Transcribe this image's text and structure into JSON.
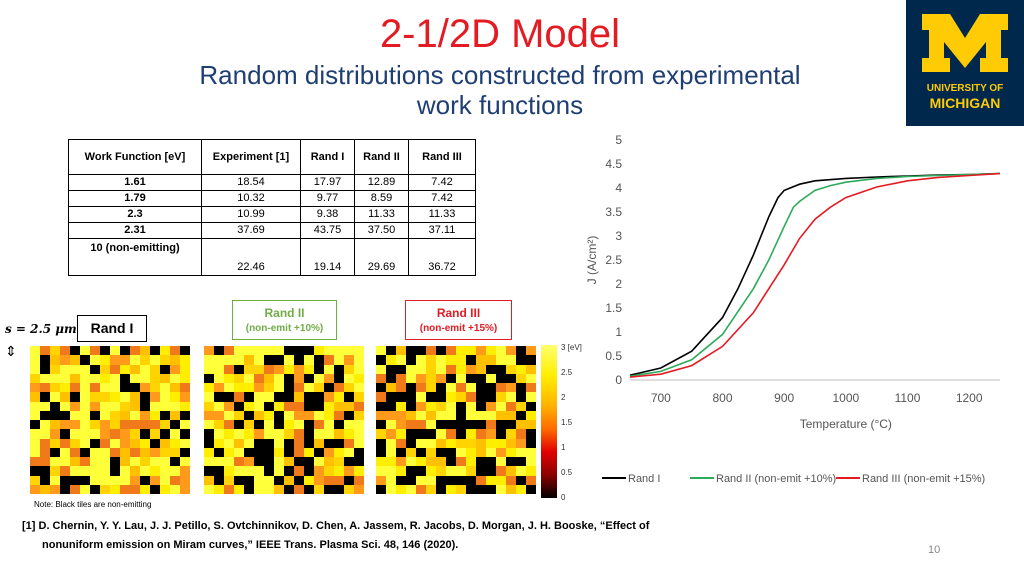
{
  "slide": {
    "title": "2-1/2D Model",
    "subtitle_line1": "Random distributions constructed from experimental",
    "subtitle_line2": "work functions",
    "logo_line1": "UNIVERSITY OF",
    "logo_line2": "MICHIGAN",
    "logo_letter": "M",
    "colors": {
      "title": "#e31b23",
      "subtitle": "#1f3f74",
      "logo_bg": "#00274c",
      "logo_fg": "#ffcb05"
    }
  },
  "table": {
    "headers": [
      "Work Function [eV]",
      "Experiment [1]",
      "Rand I",
      "Rand II",
      "Rand III"
    ],
    "rows": [
      [
        "1.61",
        "18.54",
        "17.97",
        "12.89",
        "7.42"
      ],
      [
        "1.79",
        "10.32",
        "9.77",
        "8.59",
        "7.42"
      ],
      [
        "2.3",
        "10.99",
        "9.38",
        "11.33",
        "11.33"
      ],
      [
        "2.31",
        "37.69",
        "43.75",
        "37.50",
        "37.11"
      ],
      [
        "10 (non-emitting)",
        "22.46",
        "19.14",
        "29.69",
        "36.72"
      ]
    ]
  },
  "maps": {
    "scale_label": "s = 2.5 μm",
    "rand1_label": "Rand I",
    "rand2_label": "Rand II",
    "rand2_sub": "(non-emit +10%)",
    "rand3_label": "Rand III",
    "rand3_sub": "(non-emit +15%)",
    "colorbar_ticks": [
      "3 [eV]",
      "2.5",
      "2",
      "1.5",
      "1",
      "0.5",
      "0"
    ],
    "note": "Note: Black tiles are non-emitting"
  },
  "reference": {
    "line1": "[1] D. Chernin, Y. Y. Lau, J. J. Petillo, S. Ovtchinnikov, D. Chen, A. Jassem, R. Jacobs, D. Morgan, J. H. Booske, “Effect of",
    "line2": "nonuniform emission on Miram curves,” IEEE Trans. Plasma Sci. 48, 146 (2020)."
  },
  "page_number": "10",
  "chart_data": {
    "type": "line",
    "title": "",
    "xlabel": "Temperature (°C)",
    "ylabel": "J (A/cm²)",
    "xlim": [
      650,
      1250
    ],
    "ylim": [
      0,
      5
    ],
    "xticks": [
      700,
      800,
      900,
      1000,
      1100,
      1200
    ],
    "yticks": [
      0,
      0.5,
      1,
      1.5,
      2,
      2.5,
      3,
      3.5,
      4,
      4.5,
      5
    ],
    "ytick_labels": [
      "0",
      "0.5",
      "1",
      "1.5",
      "2",
      "2.5",
      "3",
      "3.5",
      "4",
      "4.5",
      "5"
    ],
    "legend_position": "bottom",
    "grid": false,
    "series": [
      {
        "name": "Rand I",
        "color": "#000000",
        "x": [
          650,
          700,
          750,
          800,
          825,
          850,
          875,
          890,
          900,
          925,
          950,
          1000,
          1050,
          1100,
          1150,
          1200,
          1250
        ],
        "y": [
          0.1,
          0.25,
          0.6,
          1.3,
          1.9,
          2.6,
          3.4,
          3.8,
          3.95,
          4.08,
          4.15,
          4.2,
          4.23,
          4.25,
          4.27,
          4.28,
          4.3
        ]
      },
      {
        "name": "Rand II  (non-emit +10%)",
        "color": "#2eaa5c",
        "x": [
          650,
          700,
          750,
          800,
          850,
          875,
          900,
          915,
          925,
          950,
          975,
          1000,
          1050,
          1100,
          1150,
          1200,
          1250
        ],
        "y": [
          0.08,
          0.18,
          0.42,
          0.95,
          1.9,
          2.5,
          3.2,
          3.6,
          3.72,
          3.95,
          4.05,
          4.12,
          4.2,
          4.24,
          4.26,
          4.28,
          4.3
        ]
      },
      {
        "name": "Rand III (non-emit +15%)",
        "color": "#e31b23",
        "x": [
          650,
          700,
          750,
          800,
          850,
          900,
          925,
          950,
          975,
          1000,
          1050,
          1100,
          1150,
          1200,
          1250
        ],
        "y": [
          0.06,
          0.12,
          0.3,
          0.7,
          1.4,
          2.4,
          2.95,
          3.35,
          3.6,
          3.8,
          4.02,
          4.15,
          4.22,
          4.26,
          4.3
        ]
      }
    ]
  }
}
